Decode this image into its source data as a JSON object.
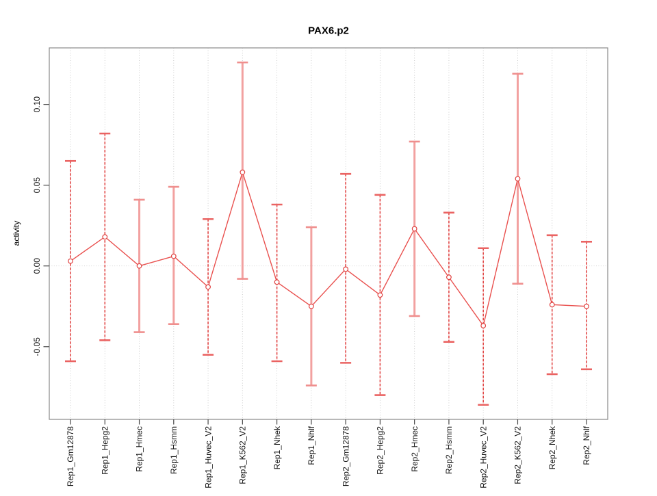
{
  "chart_data": {
    "type": "line",
    "subtype": "points-with-error-bars",
    "title": "PAX6.p2",
    "xlabel": "",
    "ylabel": "activity",
    "legend": "none",
    "grid": "vertical dotted gridline at each category; dotted horizontal line at y=0",
    "ylim": [
      -0.095,
      0.135
    ],
    "yticks": [
      -0.05,
      0.0,
      0.05,
      0.1
    ],
    "ytick_labels": [
      "-0.05",
      "0.00",
      "0.05",
      "0.10"
    ],
    "categories": [
      "Rep1_Gm12878",
      "Rep1_Hepg2",
      "Rep1_Hmec",
      "Rep1_Hsmm",
      "Rep1_Huvec_V2",
      "Rep1_K562_V2",
      "Rep1_Nhek",
      "Rep1_Nhlf",
      "Rep2_Gm12878",
      "Rep2_Hepg2",
      "Rep2_Hmec",
      "Rep2_Hsmm",
      "Rep2_Huvec_V2",
      "Rep2_K562_V2",
      "Rep2_Nhek",
      "Rep2_Nhlf"
    ],
    "series": [
      {
        "name": "activity",
        "values": [
          0.003,
          0.018,
          0.0,
          0.006,
          -0.013,
          0.058,
          -0.01,
          -0.025,
          -0.002,
          -0.018,
          0.023,
          -0.007,
          -0.037,
          0.054,
          -0.024,
          -0.025
        ],
        "ci_upper": [
          0.065,
          0.082,
          0.041,
          0.049,
          0.029,
          0.126,
          0.038,
          0.024,
          0.057,
          0.044,
          0.077,
          0.033,
          0.011,
          0.119,
          0.019,
          0.015
        ],
        "ci_lower": [
          -0.059,
          -0.046,
          -0.041,
          -0.036,
          -0.055,
          -0.008,
          -0.059,
          -0.074,
          -0.06,
          -0.08,
          -0.031,
          -0.047,
          -0.086,
          -0.011,
          -0.067,
          -0.064
        ],
        "bar_styles": [
          "dashed",
          "dashed",
          "solid",
          "solid",
          "dashed",
          "solid",
          "dashed",
          "solid",
          "dashed",
          "dashed",
          "solid",
          "dashed",
          "dashed",
          "solid",
          "dashed",
          "dashed"
        ]
      }
    ],
    "colors": {
      "series_line": "#e9504e",
      "marker_stroke": "#e0403f",
      "marker_fill": "#ffffff",
      "bar_solid": "#f2a1a0",
      "bar_dash": "#e14a49",
      "bar_dash_underlay": "#fbdede",
      "cap_solid": "#ef8f8e",
      "cap_dashed": "#ea6362",
      "gridline": "#c8c8c8",
      "zero_line": "#cfcfcf",
      "plot_border": "#898989",
      "tick": "#464646",
      "text": "#000000"
    }
  }
}
